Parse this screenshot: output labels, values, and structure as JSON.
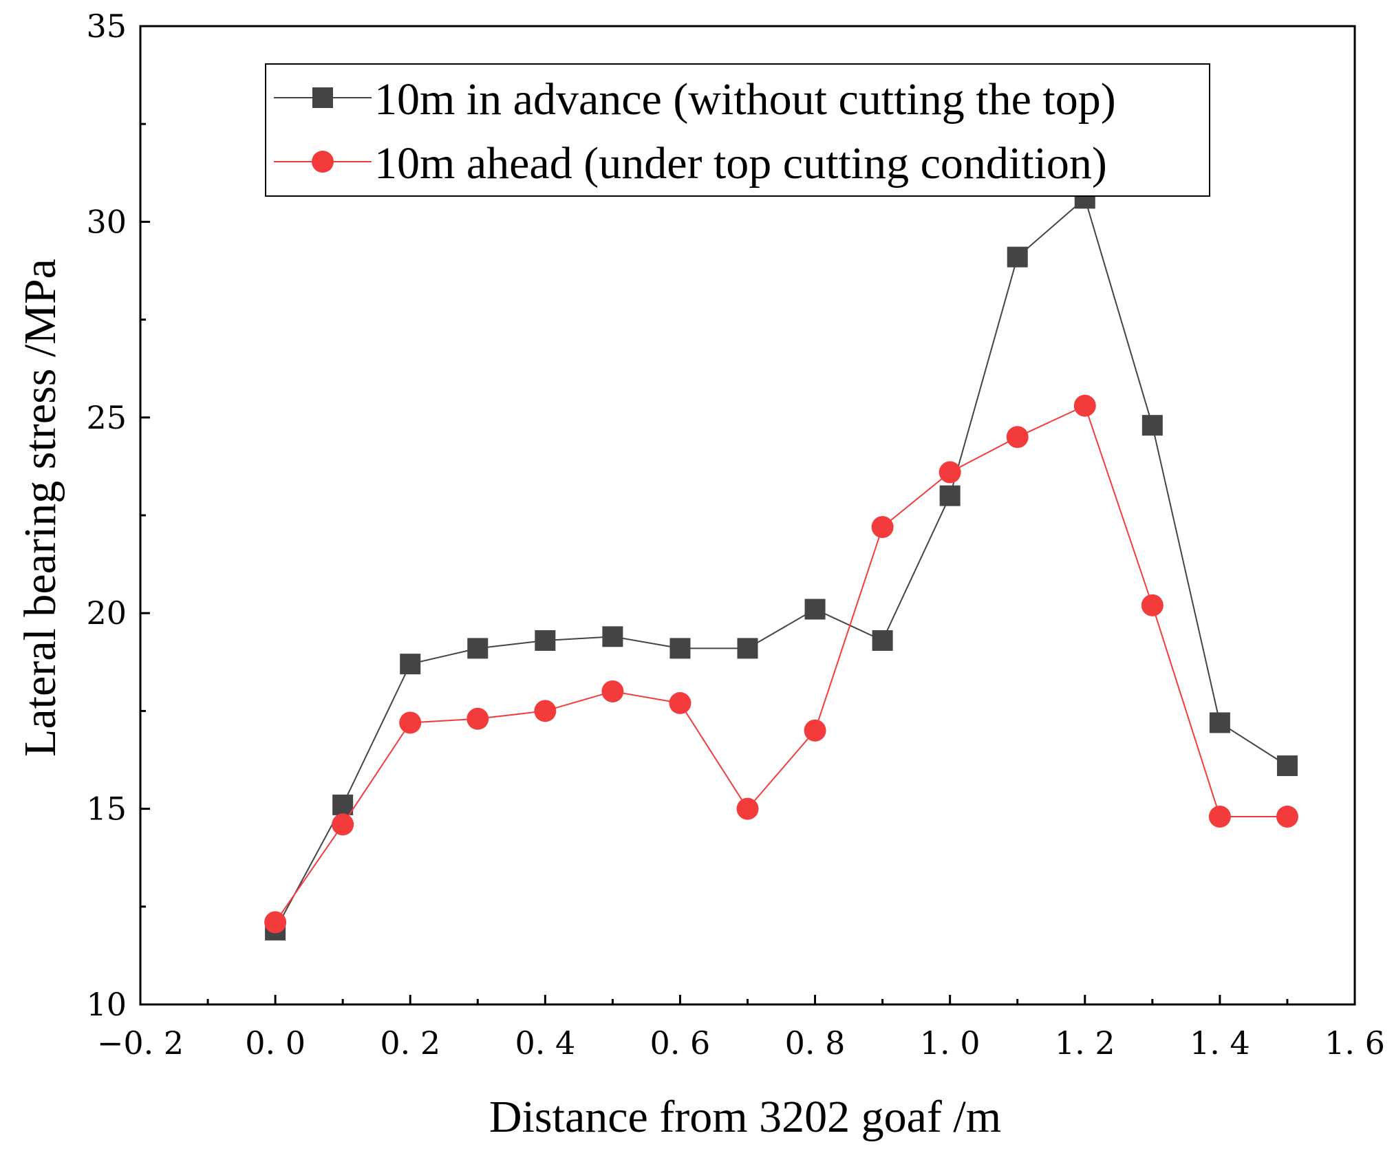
{
  "chart_data": {
    "type": "line",
    "title": "",
    "xlabel": "Distance from 3202 goaf /m",
    "ylabel": "Lateral bearing stress /MPa",
    "xlim": [
      -0.2,
      1.6
    ],
    "ylim": [
      10,
      35
    ],
    "x_ticks": [
      -0.2,
      0.0,
      0.2,
      0.4,
      0.6,
      0.8,
      1.0,
      1.2,
      1.4,
      1.6
    ],
    "x_tick_labels": [
      "−0. 2",
      "0. 0",
      "0. 2",
      "0. 4",
      "0. 6",
      "0. 8",
      "1. 0",
      "1. 2",
      "1. 4",
      "1. 6"
    ],
    "y_ticks": [
      10,
      15,
      20,
      25,
      30,
      35
    ],
    "y_tick_labels": [
      "10",
      "15",
      "20",
      "25",
      "30",
      "35"
    ],
    "grid": false,
    "legend_position": "top-center",
    "x": [
      0.0,
      0.1,
      0.2,
      0.3,
      0.4,
      0.5,
      0.6,
      0.7,
      0.8,
      0.9,
      1.0,
      1.1,
      1.2,
      1.3,
      1.4,
      1.5
    ],
    "series": [
      {
        "name": "10m in advance (without cutting the top)",
        "marker": "square",
        "color": "#444444",
        "line_color": "#444444",
        "values": [
          11.9,
          15.1,
          18.7,
          19.1,
          19.3,
          19.4,
          19.1,
          19.1,
          20.1,
          19.3,
          23.0,
          29.1,
          30.6,
          24.8,
          17.2,
          16.1
        ]
      },
      {
        "name": "10m ahead (under top cutting condition)",
        "marker": "circle",
        "color": "#f33b3b",
        "line_color": "#f33b3b",
        "values": [
          12.1,
          14.6,
          17.2,
          17.3,
          17.5,
          18.0,
          17.7,
          15.0,
          17.0,
          22.2,
          23.6,
          24.5,
          25.3,
          20.2,
          14.8,
          14.8
        ]
      }
    ]
  }
}
